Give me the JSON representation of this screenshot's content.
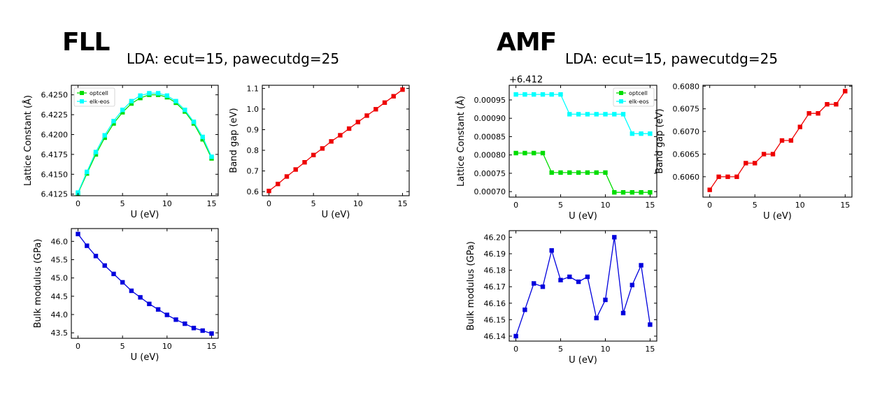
{
  "panels": [
    {
      "heading": "FLL",
      "subtitle": "LDA: ecut=15, pawecutdg=25"
    },
    {
      "heading": "AMF",
      "subtitle": "LDA: ecut=15, pawecutdg=25"
    }
  ],
  "chart_data": [
    {
      "type": "line",
      "panel": "FLL",
      "xlabel": "U (eV)",
      "ylabel": "Lattice Constant (Å)",
      "xlim": [
        -0.75,
        15.75
      ],
      "ylim": [
        6.4123,
        6.4262
      ],
      "xticks": [
        0,
        5,
        10,
        15
      ],
      "yticks": [
        6.4125,
        6.415,
        6.4175,
        6.42,
        6.4225,
        6.425
      ],
      "ytick_labels": [
        "6.4125",
        "6.4150",
        "6.4175",
        "6.4200",
        "6.4225",
        "6.4250"
      ],
      "x": [
        0,
        1,
        2,
        3,
        4,
        5,
        6,
        7,
        8,
        9,
        10,
        11,
        12,
        13,
        14,
        15
      ],
      "series": [
        {
          "name": "optcell",
          "color": "#00dd00",
          "values": [
            6.4126,
            6.4151,
            6.4175,
            6.4196,
            6.4214,
            6.4228,
            6.4239,
            6.4246,
            6.425,
            6.425,
            6.4247,
            6.424,
            6.4229,
            6.4214,
            6.4194,
            6.417
          ]
        },
        {
          "name": "elk-eos",
          "color": "#00ffff",
          "values": [
            6.4127,
            6.4153,
            6.4178,
            6.4199,
            6.4217,
            6.4231,
            6.4242,
            6.4249,
            6.4252,
            6.4252,
            6.4249,
            6.4242,
            6.4231,
            6.4216,
            6.4197,
            6.4172
          ]
        }
      ],
      "legend": "top-left"
    },
    {
      "type": "line",
      "panel": "FLL",
      "xlabel": "U (eV)",
      "ylabel": "Band gap (eV)",
      "xlim": [
        -0.75,
        15.75
      ],
      "ylim": [
        0.58,
        1.115
      ],
      "xticks": [
        0,
        5,
        10,
        15
      ],
      "yticks": [
        0.6,
        0.7,
        0.8,
        0.9,
        1.0,
        1.1
      ],
      "ytick_labels": [
        "0.6",
        "0.7",
        "0.8",
        "0.9",
        "1.0",
        "1.1"
      ],
      "x": [
        0,
        1,
        2,
        3,
        4,
        5,
        6,
        7,
        8,
        9,
        10,
        11,
        12,
        13,
        14,
        15
      ],
      "series": [
        {
          "color": "#ee0000",
          "values": [
            0.603,
            0.637,
            0.673,
            0.707,
            0.742,
            0.777,
            0.809,
            0.843,
            0.873,
            0.905,
            0.937,
            0.968,
            0.999,
            1.031,
            1.062,
            1.094
          ]
        }
      ]
    },
    {
      "type": "line",
      "panel": "FLL",
      "xlabel": "U (eV)",
      "ylabel": "Bulk modulus (GPa)",
      "xlim": [
        -0.75,
        15.75
      ],
      "ylim": [
        43.35,
        46.35
      ],
      "xticks": [
        0,
        5,
        10,
        15
      ],
      "yticks": [
        43.5,
        44.0,
        44.5,
        45.0,
        45.5,
        46.0
      ],
      "ytick_labels": [
        "43.5",
        "44.0",
        "44.5",
        "45.0",
        "45.5",
        "46.0"
      ],
      "x": [
        0,
        1,
        2,
        3,
        4,
        5,
        6,
        7,
        8,
        9,
        10,
        11,
        12,
        13,
        14,
        15
      ],
      "series": [
        {
          "color": "#0000dd",
          "values": [
            46.2,
            45.88,
            45.6,
            45.34,
            45.11,
            44.88,
            44.65,
            44.47,
            44.29,
            44.14,
            43.99,
            43.86,
            43.75,
            43.63,
            43.56,
            43.48
          ]
        }
      ]
    },
    {
      "type": "line",
      "panel": "AMF",
      "xlabel": "U (eV)",
      "ylabel": "Lattice Constant (Å)",
      "offset_label": "+6.412",
      "xlim": [
        -0.75,
        15.75
      ],
      "ylim": [
        0.000685,
        0.00099
      ],
      "xticks": [
        0,
        5,
        10,
        15
      ],
      "yticks": [
        0.0007,
        0.00075,
        0.0008,
        0.00085,
        0.0009,
        0.00095
      ],
      "ytick_labels": [
        "0.00070",
        "0.00075",
        "0.00080",
        "0.00085",
        "0.00090",
        "0.00095"
      ],
      "x": [
        0,
        1,
        2,
        3,
        4,
        5,
        6,
        7,
        8,
        9,
        10,
        11,
        12,
        13,
        14,
        15
      ],
      "series": [
        {
          "name": "optcell",
          "color": "#00dd00",
          "values": [
            0.000805,
            0.000805,
            0.000805,
            0.000805,
            0.000752,
            0.000752,
            0.000752,
            0.000752,
            0.000752,
            0.000752,
            0.000752,
            0.000698,
            0.000698,
            0.000698,
            0.000698,
            0.000698
          ]
        },
        {
          "name": "elk-eos",
          "color": "#00ffff",
          "values": [
            0.000965,
            0.000965,
            0.000965,
            0.000965,
            0.000965,
            0.000965,
            0.000911,
            0.000911,
            0.000911,
            0.000911,
            0.000911,
            0.000911,
            0.000911,
            0.000858,
            0.000858,
            0.000858
          ]
        }
      ],
      "legend": "top-right"
    },
    {
      "type": "line",
      "panel": "AMF",
      "xlabel": "U (eV)",
      "ylabel": "Band gap (eV)",
      "xlim": [
        -0.75,
        15.75
      ],
      "ylim": [
        0.60555,
        0.60802
      ],
      "xticks": [
        0,
        5,
        10,
        15
      ],
      "yticks": [
        0.606,
        0.6065,
        0.607,
        0.6075,
        0.608
      ],
      "ytick_labels": [
        "0.6060",
        "0.6065",
        "0.6070",
        "0.6075",
        "0.6080"
      ],
      "x": [
        0,
        1,
        2,
        3,
        4,
        5,
        6,
        7,
        8,
        9,
        10,
        11,
        12,
        13,
        14,
        15
      ],
      "series": [
        {
          "color": "#ee0000",
          "values": [
            0.60571,
            0.606,
            0.606,
            0.606,
            0.6063,
            0.6063,
            0.6065,
            0.6065,
            0.6068,
            0.6068,
            0.6071,
            0.6074,
            0.6074,
            0.6076,
            0.6076,
            0.60789
          ]
        }
      ]
    },
    {
      "type": "line",
      "panel": "AMF",
      "xlabel": "U (eV)",
      "ylabel": "Bulk modulus (GPa)",
      "xlim": [
        -0.75,
        15.75
      ],
      "ylim": [
        46.137,
        46.204
      ],
      "xticks": [
        0,
        5,
        10,
        15
      ],
      "yticks": [
        46.14,
        46.15,
        46.16,
        46.17,
        46.18,
        46.19,
        46.2
      ],
      "ytick_labels": [
        "46.14",
        "46.15",
        "46.16",
        "46.17",
        "46.18",
        "46.19",
        "46.20"
      ],
      "x": [
        0,
        1,
        2,
        3,
        4,
        5,
        6,
        7,
        8,
        9,
        10,
        11,
        12,
        13,
        14,
        15
      ],
      "series": [
        {
          "color": "#0000dd",
          "values": [
            46.14,
            46.156,
            46.172,
            46.17,
            46.192,
            46.174,
            46.176,
            46.173,
            46.176,
            46.151,
            46.162,
            46.2,
            46.154,
            46.171,
            46.183,
            46.147
          ]
        }
      ]
    }
  ]
}
